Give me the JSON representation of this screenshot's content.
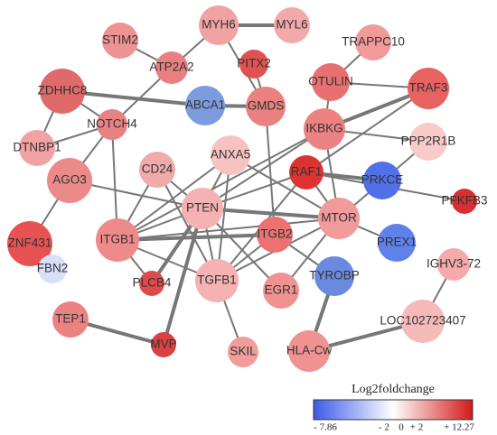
{
  "nodes": [
    {
      "label": "MYH6",
      "color": "#f1a3a3"
    },
    {
      "label": "MYL6",
      "color": "#f3a9a9"
    },
    {
      "label": "STIM2",
      "color": "#ee9393"
    },
    {
      "label": "ATP2A2",
      "color": "#e88080"
    },
    {
      "label": "PITX2",
      "color": "#e05252"
    },
    {
      "label": "TRAPPC10",
      "color": "#f09a9a"
    },
    {
      "label": "ZDHHC8",
      "color": "#e06a6a"
    },
    {
      "label": "ABCA1",
      "color": "#7c9ce0"
    },
    {
      "label": "GMDS",
      "color": "#ea8080"
    },
    {
      "label": "OTULIN",
      "color": "#e87070"
    },
    {
      "label": "TRAF3",
      "color": "#e86262"
    },
    {
      "label": "NOTCH4",
      "color": "#e88282"
    },
    {
      "label": "IKBKG",
      "color": "#ec8282"
    },
    {
      "label": "PPP2R1B",
      "color": "#f8caca"
    },
    {
      "label": "DTNBP1",
      "color": "#f2a2a2"
    },
    {
      "label": "ANXA5",
      "color": "#f8c2c2"
    },
    {
      "label": "CD24",
      "color": "#f0aaaa"
    },
    {
      "label": "AGO3",
      "color": "#ec8a8a"
    },
    {
      "label": "RAF1",
      "color": "#dd3232"
    },
    {
      "label": "PRKCE",
      "color": "#5070e8"
    },
    {
      "label": "PFKFB3",
      "color": "#d83030"
    },
    {
      "label": "ZNF431",
      "color": "#e85252"
    },
    {
      "label": "PTEN",
      "color": "#f4b2b2"
    },
    {
      "label": "MTOR",
      "color": "#f09a9a"
    },
    {
      "label": "ITGB1",
      "color": "#ee8a8a"
    },
    {
      "label": "ITGB2",
      "color": "#ec7272"
    },
    {
      "label": "PREX1",
      "color": "#6080ea"
    },
    {
      "label": "FBN2",
      "color": "#d8e0f8"
    },
    {
      "label": "PLCB4",
      "color": "#e04a4a"
    },
    {
      "label": "TGFB1",
      "color": "#f4b2b2"
    },
    {
      "label": "EGR1",
      "color": "#f09292"
    },
    {
      "label": "TYROBP",
      "color": "#6a8ae0"
    },
    {
      "label": "IGHV3-72",
      "color": "#f4aaaa"
    },
    {
      "label": "TEP1",
      "color": "#ec8282"
    },
    {
      "label": "MVP",
      "color": "#d84242"
    },
    {
      "label": "SKIL",
      "color": "#f29c9c"
    },
    {
      "label": "LOC102723407",
      "color": "#f6baba"
    },
    {
      "label": "HLA-Cw",
      "color": "#ee9292"
    }
  ],
  "legend": {
    "title": "Log2foldchange",
    "labels": [
      "- 7.86",
      "- 2",
      "0",
      "+ 2",
      "+ 12.27"
    ],
    "colors": [
      "#3c5ae8",
      "#ffffff",
      "#d41818"
    ]
  }
}
